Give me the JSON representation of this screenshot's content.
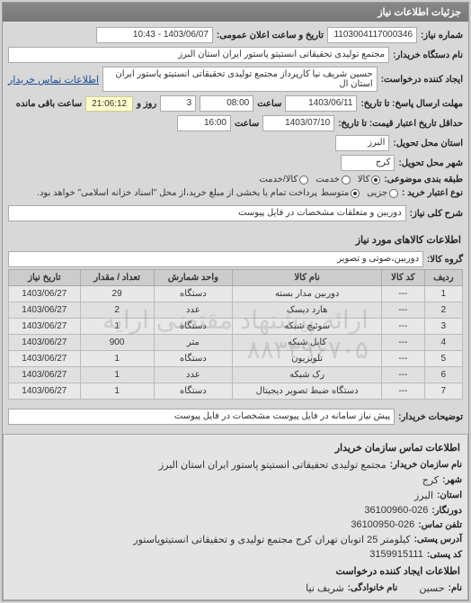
{
  "header": {
    "title": "جزئیات اطلاعات نیاز"
  },
  "info": {
    "req_no_label": "شماره نیاز:",
    "req_no": "1103004117000346",
    "ann_date_label": "تاریخ و ساعت اعلان عمومی:",
    "ann_date": "1403/06/07 - 10:43",
    "buyer_org_label": "نام دستگاه خریدار:",
    "buyer_org": "مجتمع تولیدی تحقیقاتی انستیتو پاستور ایران استان البرز",
    "requester_label": "ایجاد کننده درخواست:",
    "requester": "حسین شریف نیا کارپرداز مجتمع تولیدی تحقیقاتی انستیتو پاستور ایران استان ال",
    "contact_link": "اطلاعات تماس خریدار",
    "deadline_send_label": "مهلت ارسال پاسخ: تا تاریخ:",
    "deadline_send_date": "1403/06/11",
    "time_label": "ساعت",
    "deadline_send_time": "08:00",
    "remain_label_days": "روز و",
    "remain_days": "3",
    "remain_time": "21:06:12",
    "remain_suffix": "ساعت باقی مانده",
    "validity_label": "حداقل تاریخ اعتبار قیمت: تا تاریخ:",
    "validity_date": "1403/07/10",
    "validity_time": "16:00",
    "province_label": "استان محل تحویل:",
    "province": "البرز",
    "city_label": "شهر محل تحویل:",
    "city": "کرج",
    "budget_label": "طبقه بندی موضوعی:",
    "budget_opts": {
      "goods": "کالا",
      "service": "خدمت",
      "both": "کالا/خدمت"
    },
    "purchase_type_label": "نوع اعتبار خرید :",
    "purchase_opts": {
      "small": "جزیی",
      "medium": "متوسط"
    },
    "purchase_note": "پرداخت تمام یا بخشی از مبلغ خرید،از محل \"اسناد خزانه اسلامی\" خواهد بود.",
    "summary_label": "شرح کلی نیاز:",
    "summary": "دوربین و متعلقات مشخصات در فایل پیوست"
  },
  "goods": {
    "title": "اطلاعات کالاهای مورد نیاز",
    "group_label": "گروه کالا:",
    "group": "دوربین،صوتی و تصویر",
    "columns": [
      "ردیف",
      "کد کالا",
      "نام کالا",
      "واحد شمارش",
      "تعداد / مقدار",
      "تاریخ نیاز"
    ],
    "rows": [
      [
        "1",
        "---",
        "دوربین مدار بسته",
        "دستگاه",
        "29",
        "1403/06/27"
      ],
      [
        "2",
        "---",
        "هارد دیسک",
        "عدد",
        "2",
        "1403/06/27"
      ],
      [
        "3",
        "---",
        "سوئیچ شبکه",
        "دستگاه",
        "1",
        "1403/06/27"
      ],
      [
        "4",
        "---",
        "کابل شبکه",
        "متر",
        "900",
        "1403/06/27"
      ],
      [
        "5",
        "---",
        "تلویزیون",
        "دستگاه",
        "1",
        "1403/06/27"
      ],
      [
        "6",
        "---",
        "رک شبکه",
        "عدد",
        "1",
        "1403/06/27"
      ],
      [
        "7",
        "---",
        "دستگاه ضبط تصویر دیجیتال",
        "دستگاه",
        "1",
        "1403/06/27"
      ]
    ],
    "watermark1": "ارائه پیشنهاد مقتضی ارایه",
    "watermark2": "۸۸۳۴۹۶۷۰۵"
  },
  "buyer_notes": {
    "label": "توضیحات خریدار:",
    "text": "پیش نیاز سامانه در فایل پیوست مشخصات در فایل پیوست"
  },
  "org_info": {
    "title": "اطلاعات تماس سازمان خریدار",
    "org_label": "نام سازمان خریدار:",
    "org": "مجتمع تولیدی تحقیقاتی انستیتو پاستور ایران استان البرز",
    "city_label": "شهر:",
    "city": "کرج",
    "province_label": "استان:",
    "province": "البرز",
    "fax_label": "دورنگار:",
    "fax": "36100960-026",
    "phone_label": "تلفن تماس:",
    "phone": "36100950-026",
    "address_label": "آدرس پستی:",
    "address": "کیلومتر 25 اتوبان تهران کرج مجتمع تولیدی و تحقیقاتی انستیتوپاستور",
    "postal_label": "کد پستی:",
    "postal": "3159915111",
    "creator_title": "اطلاعات ایجاد کننده درخواست",
    "name_label": "نام:",
    "name": "حسین",
    "family_label": "نام خانوادگی:",
    "family": "شریف نیا"
  }
}
